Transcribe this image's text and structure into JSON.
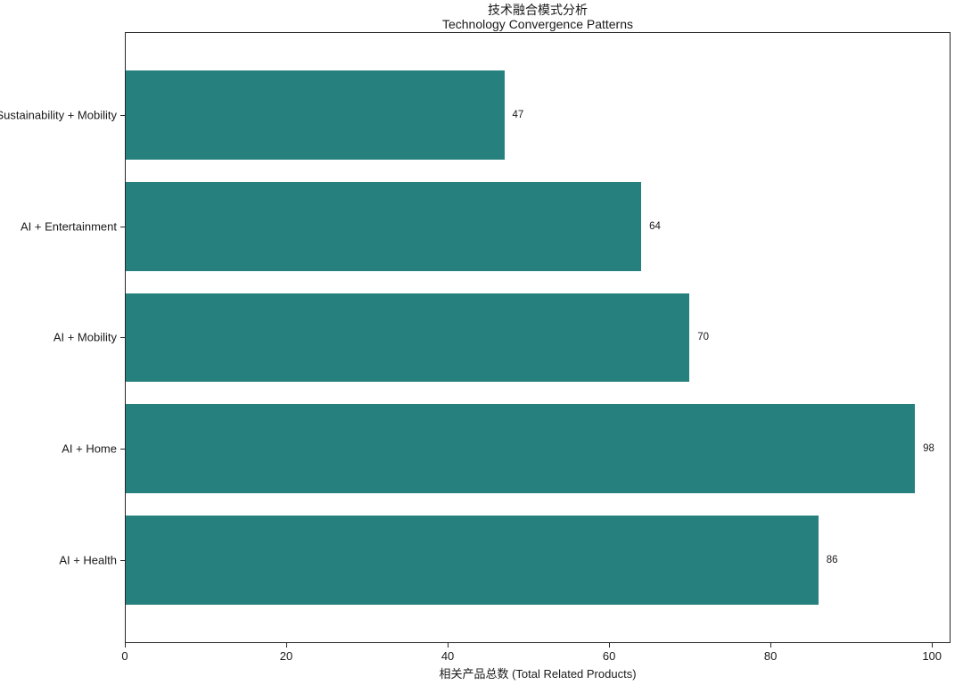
{
  "chart_data": {
    "type": "bar",
    "orientation": "horizontal",
    "title": "技术融合模式分析",
    "subtitle": "Technology Convergence Patterns",
    "categories": [
      "Sustainability + Mobility",
      "AI + Entertainment",
      "AI + Mobility",
      "AI + Home",
      "AI + Health"
    ],
    "values": [
      47,
      64,
      70,
      98,
      86
    ],
    "xlabel": "相关产品总数 (Total Related Products)",
    "ylabel": "",
    "xlim": [
      0,
      102.3
    ],
    "xticks": [
      0,
      20,
      40,
      60,
      80,
      100
    ],
    "bar_color": "#26817E",
    "background_color": "#ffffff",
    "spine_color": "#262626",
    "value_labels_visible": true,
    "grid": false,
    "legend": false
  }
}
